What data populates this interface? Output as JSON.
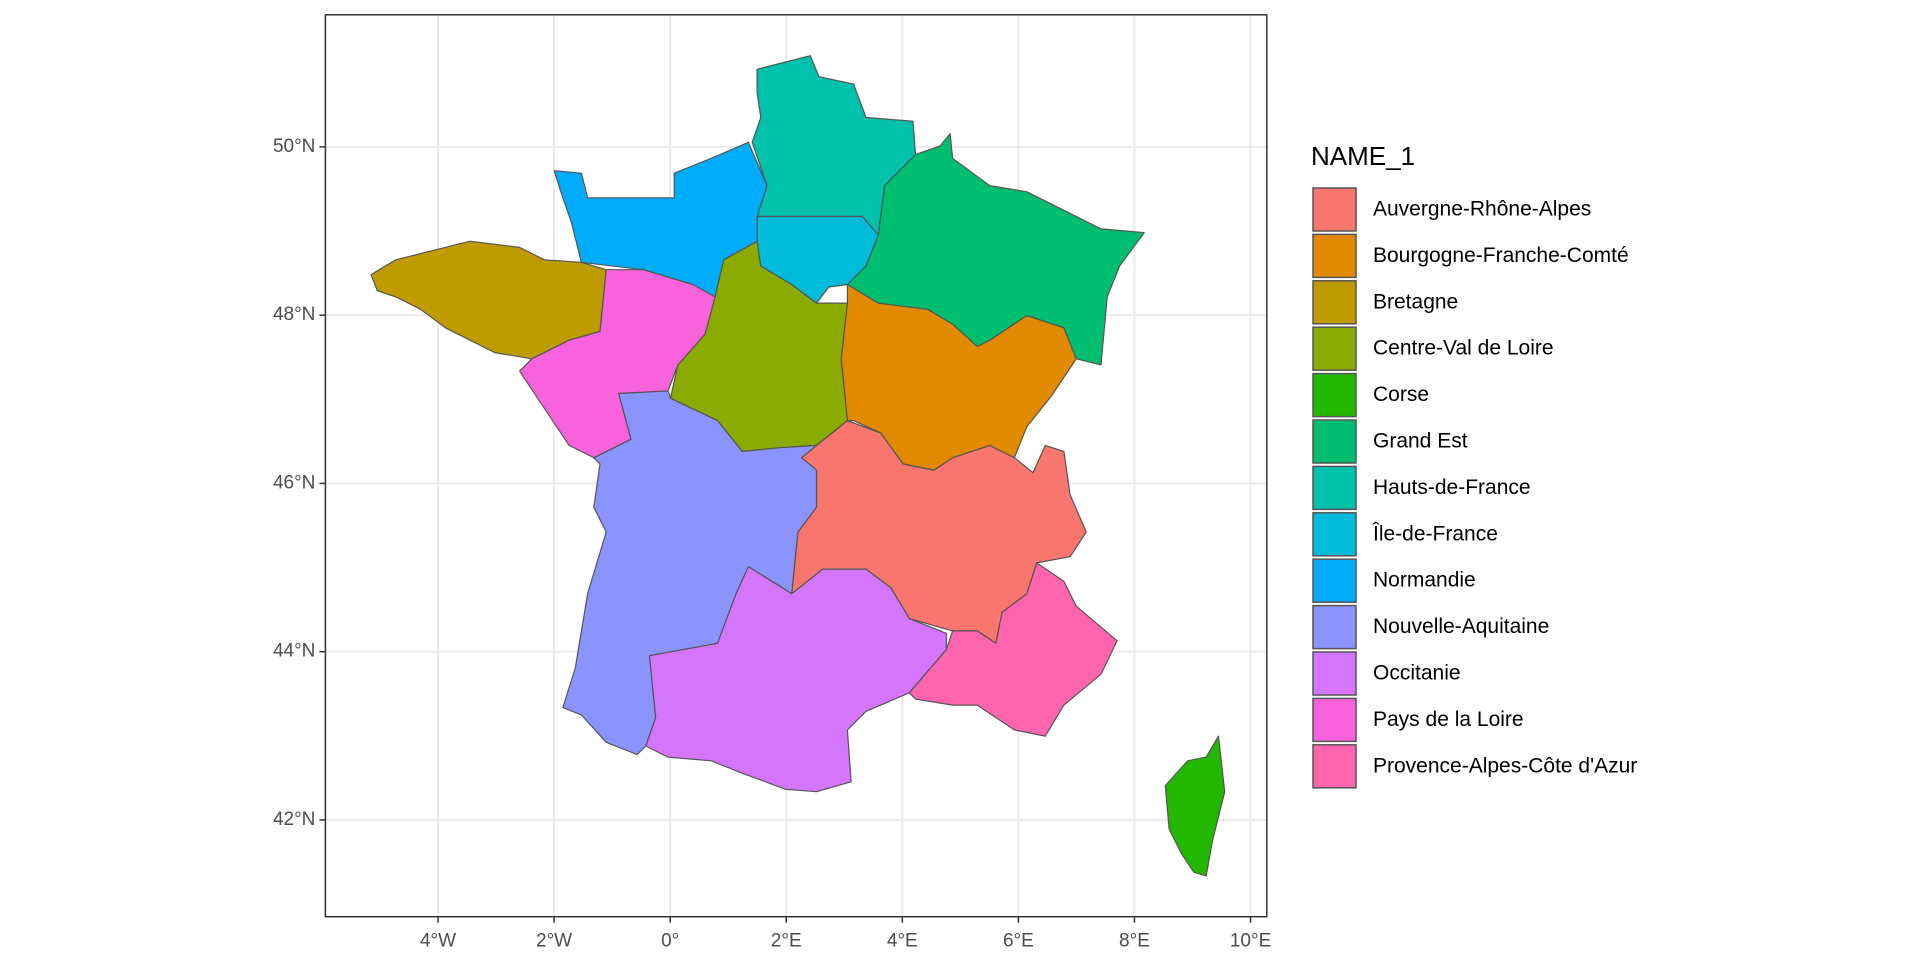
{
  "chart_data": {
    "type": "map",
    "legend_title": "NAME_1",
    "series": [
      {
        "name": "Auvergne-Rhône-Alpes",
        "color": "#F8766D"
      },
      {
        "name": "Bourgogne-Franche-Comté",
        "color": "#E18A00"
      },
      {
        "name": "Bretagne",
        "color": "#BE9C00"
      },
      {
        "name": "Centre-Val de Loire",
        "color": "#8CAB00"
      },
      {
        "name": "Corse",
        "color": "#24B700"
      },
      {
        "name": "Grand Est",
        "color": "#00BE70"
      },
      {
        "name": "Hauts-de-France",
        "color": "#00C1AB"
      },
      {
        "name": "Île-de-France",
        "color": "#00BBDA"
      },
      {
        "name": "Normandie",
        "color": "#00ACFC"
      },
      {
        "name": "Nouvelle-Aquitaine",
        "color": "#8B93FF"
      },
      {
        "name": "Occitanie",
        "color": "#D575FE"
      },
      {
        "name": "Pays de la Loire",
        "color": "#F962DD"
      },
      {
        "name": "Provence-Alpes-Côte d'Azur",
        "color": "#FF65AC"
      }
    ],
    "xlim": [
      -5.94,
      10.28
    ],
    "ylim": [
      40.85,
      51.57
    ],
    "xticks": [
      {
        "value": -4,
        "label": "4°W"
      },
      {
        "value": -2,
        "label": "2°W"
      },
      {
        "value": 0,
        "label": "0°"
      },
      {
        "value": 2,
        "label": "2°E"
      },
      {
        "value": 4,
        "label": "4°E"
      },
      {
        "value": 6,
        "label": "6°E"
      },
      {
        "value": 8,
        "label": "8°E"
      },
      {
        "value": 10,
        "label": "10°E"
      }
    ],
    "yticks": [
      {
        "value": 42,
        "label": "42°N"
      },
      {
        "value": 44,
        "label": "44°N"
      },
      {
        "value": 46,
        "label": "46°N"
      },
      {
        "value": 48,
        "label": "48°N"
      },
      {
        "value": 50,
        "label": "50°N"
      }
    ],
    "grid": true
  }
}
